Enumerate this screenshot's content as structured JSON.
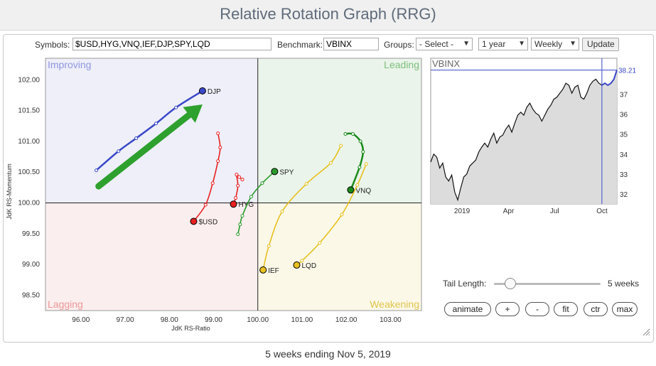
{
  "page": {
    "title": "Relative Rotation Graph (RRG)",
    "footer": "5 weeks ending Nov 5, 2019"
  },
  "controls": {
    "symbols_label": "Symbols:",
    "symbols_value": "$USD,HYG,VNQ,IEF,DJP,SPY,LQD",
    "benchmark_label": "Benchmark:",
    "benchmark_value": "VBINX",
    "groups_label": "Groups:",
    "groups_value": "- Select -",
    "period_value": "1 year",
    "frequency_value": "Weekly",
    "update_label": "Update",
    "tail_length_label": "Tail Length:",
    "tail_length_value": "5 weeks",
    "buttons": [
      "animate",
      "+",
      "-",
      "fit",
      "ctr",
      "max"
    ]
  },
  "chart_data": [
    {
      "type": "scatter",
      "subtype": "relative-rotation-graph",
      "xlabel": "JdK RS-Ratio",
      "ylabel": "JdK RS-Momentum",
      "xlim": [
        95.2,
        103.7
      ],
      "ylim": [
        98.25,
        102.35
      ],
      "x_ticks": [
        "96.00",
        "97.00",
        "98.00",
        "99.00",
        "100.00",
        "101.00",
        "102.00",
        "103.00"
      ],
      "y_ticks": [
        "98.50",
        "99.00",
        "99.50",
        "100.00",
        "100.50",
        "101.00",
        "101.50",
        "102.00"
      ],
      "quadrants": {
        "top_left": "Improving",
        "top_right": "Leading",
        "bottom_left": "Lagging",
        "bottom_right": "Weakening"
      },
      "quadrant_colors": {
        "improving": "#8f96e0",
        "leading": "#7dbf7d",
        "lagging": "#e89898",
        "weakening": "#e0c44a"
      },
      "quadrant_fills": {
        "improving": "#eeeff9",
        "leading": "#eaf4ea",
        "lagging": "#fbeeee",
        "weakening": "#fbf8e8"
      },
      "series": [
        {
          "name": "DJP",
          "color": "#3a48c8",
          "x": [
            96.35,
            96.85,
            97.25,
            97.7,
            98.15,
            98.75
          ],
          "y": [
            100.53,
            100.84,
            101.05,
            101.29,
            101.55,
            101.82
          ]
        },
        {
          "name": "$USD",
          "color": "#e82020",
          "x": [
            99.1,
            99.15,
            99.1,
            98.98,
            98.82,
            98.55
          ],
          "y": [
            101.13,
            100.9,
            100.68,
            100.32,
            99.97,
            99.7
          ]
        },
        {
          "name": "HYG",
          "color": "#e82020",
          "x": [
            99.65,
            99.58,
            99.52,
            99.55,
            99.5,
            99.45
          ],
          "y": [
            100.38,
            100.42,
            100.46,
            100.28,
            100.08,
            99.98
          ]
        },
        {
          "name": "SPY",
          "color": "#2a9a2a",
          "x": [
            99.55,
            99.6,
            99.65,
            99.85,
            100.1,
            100.38
          ],
          "y": [
            99.49,
            99.65,
            99.79,
            100.1,
            100.32,
            100.51
          ]
        },
        {
          "name": "VNQ",
          "color": "#1a8a1a",
          "x": [
            101.98,
            102.15,
            102.32,
            102.38,
            102.3,
            102.1
          ],
          "y": [
            101.12,
            101.12,
            101.0,
            100.83,
            100.58,
            100.21
          ]
        },
        {
          "name": "IEF",
          "color": "#e8c020",
          "x": [
            101.88,
            101.65,
            101.1,
            100.55,
            100.25,
            100.12
          ],
          "y": [
            100.93,
            100.65,
            100.31,
            99.86,
            99.3,
            98.91
          ]
        },
        {
          "name": "LQD",
          "color": "#e8c020",
          "x": [
            102.45,
            102.25,
            101.9,
            101.4,
            101.0,
            100.88
          ],
          "y": [
            100.63,
            100.29,
            99.81,
            99.35,
            99.06,
            98.99
          ]
        }
      ],
      "annotations": [
        {
          "type": "arrow",
          "color": "#2ea02e",
          "from": [
            96.4,
            100.27
          ],
          "to": [
            98.75,
            101.6
          ]
        }
      ]
    },
    {
      "type": "area",
      "name": "VBINX",
      "title": "VBINX",
      "last_value": "38.21",
      "x_ticks": [
        "2019",
        "Apr",
        "Jul",
        "Oct"
      ],
      "y_ticks": [
        "32",
        "33",
        "34",
        "35",
        "36",
        "37"
      ],
      "ylim": [
        31.5,
        38.8
      ],
      "color": "#111111",
      "highlight_color": "#3a48c8",
      "values": [
        33.6,
        34.0,
        33.85,
        33.3,
        33.55,
        32.85,
        32.65,
        32.95,
        32.1,
        31.7,
        32.3,
        32.85,
        33.0,
        33.4,
        33.55,
        33.7,
        34.1,
        34.35,
        34.55,
        34.35,
        34.75,
        35.05,
        34.55,
        34.85,
        34.95,
        35.25,
        35.45,
        35.1,
        35.55,
        35.95,
        36.1,
        35.95,
        36.35,
        36.55,
        36.25,
        36.05,
        35.95,
        35.65,
        35.95,
        36.25,
        36.45,
        36.75,
        36.85,
        37.05,
        37.25,
        37.55,
        37.45,
        37.05,
        37.35,
        37.45,
        36.85,
        36.75,
        37.05,
        37.45,
        37.65,
        37.75,
        37.55,
        37.45,
        37.55,
        37.45,
        37.55,
        37.75,
        38.21
      ],
      "highlight_count": 6
    }
  ]
}
